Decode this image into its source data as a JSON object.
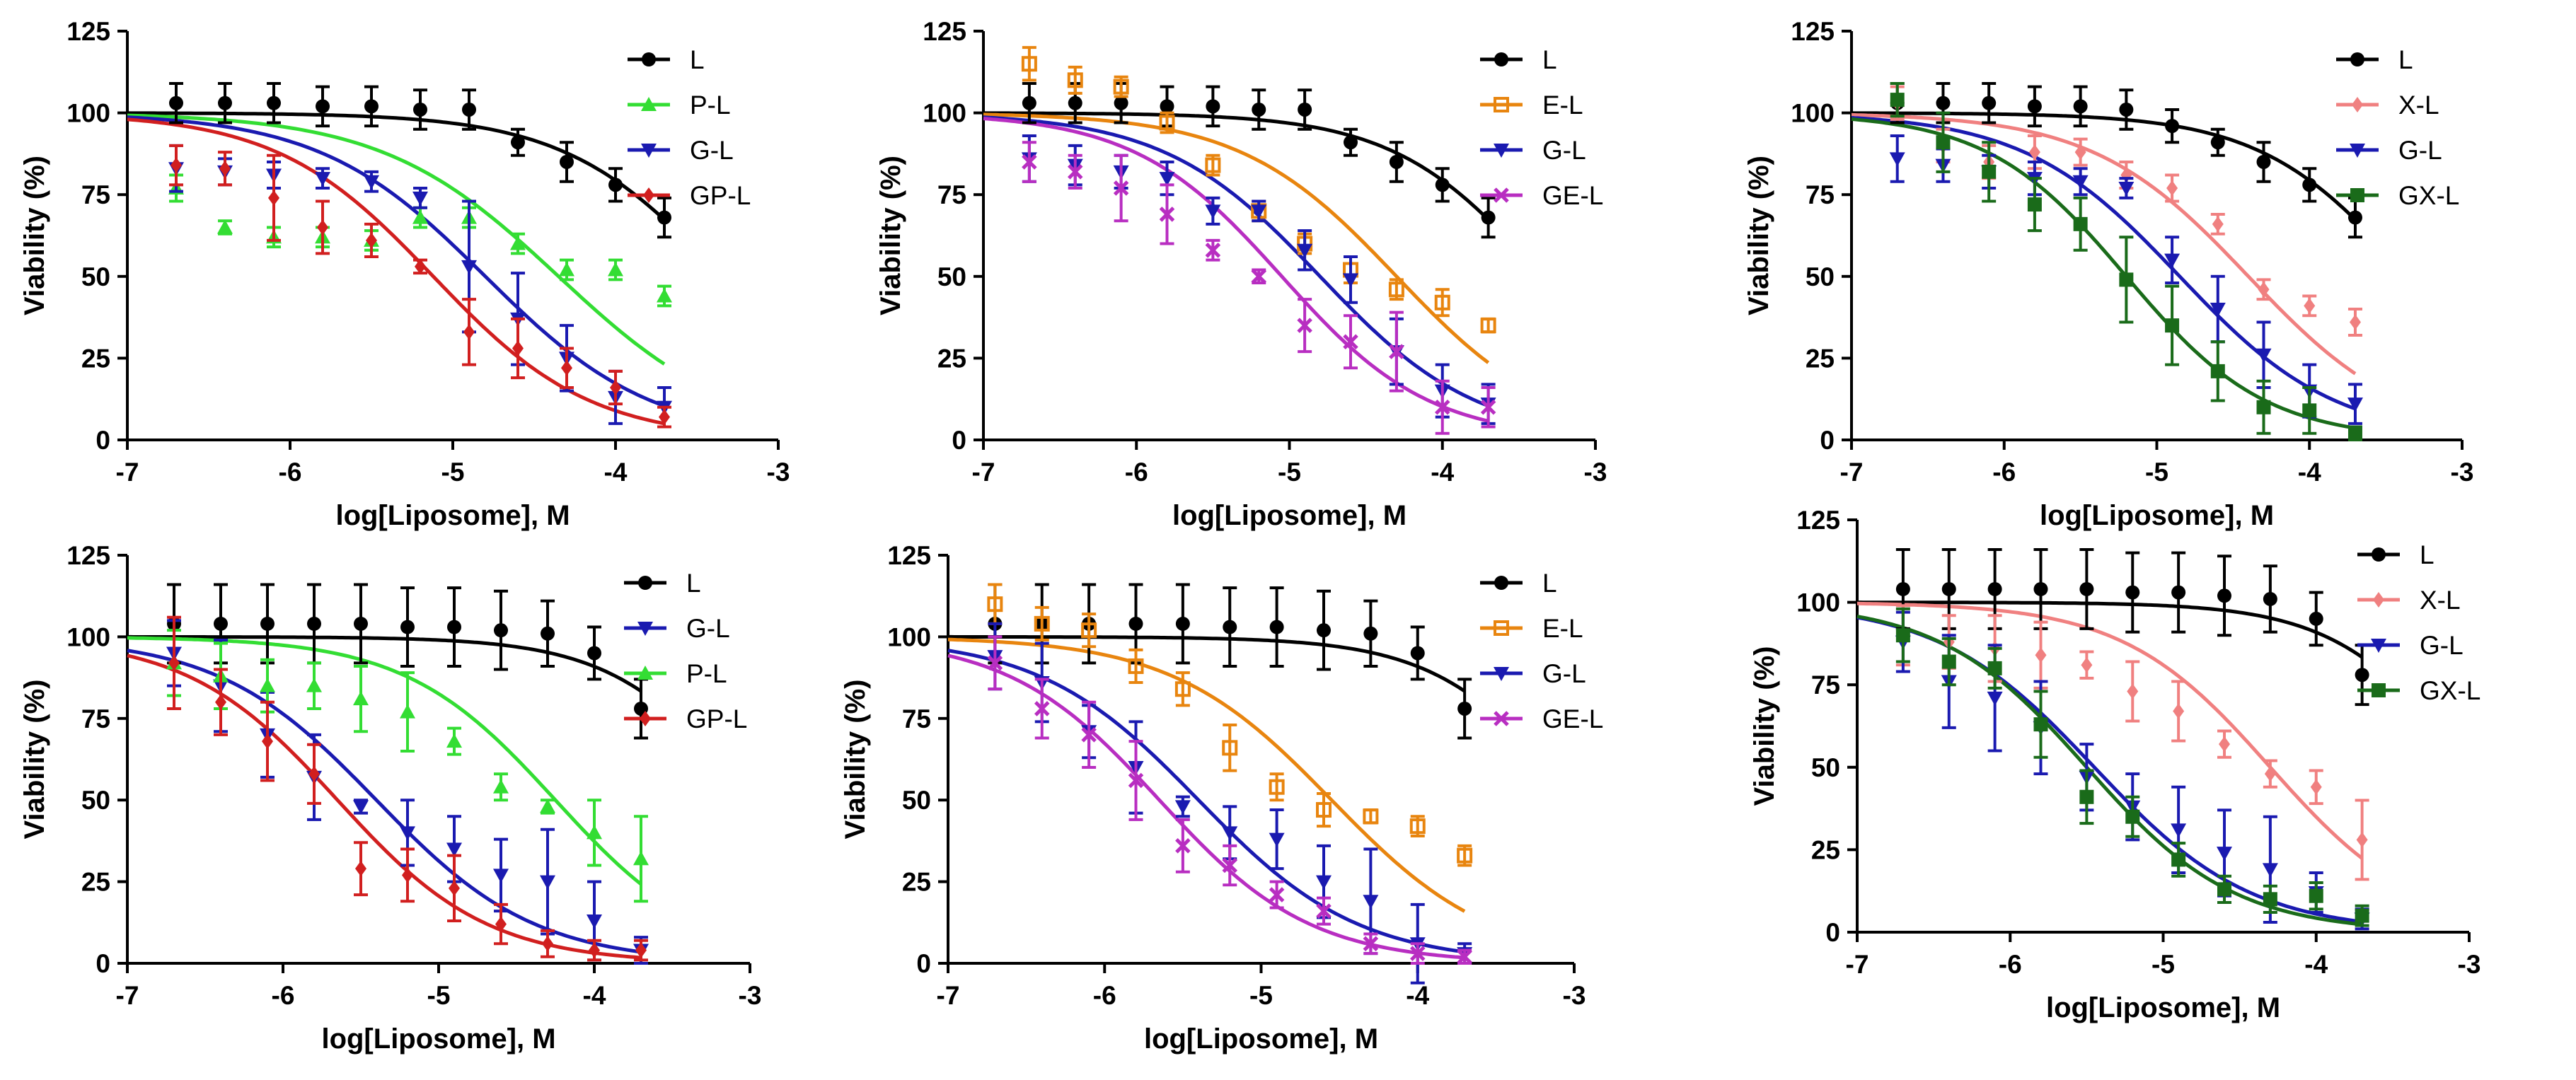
{
  "figure": {
    "series_styles": {
      "L": {
        "color": "#000000",
        "marker": "circle"
      },
      "P-L": {
        "color": "#33dd33",
        "marker": "triangle-up"
      },
      "G-L": {
        "color": "#1a1ab0",
        "marker": "triangle-down"
      },
      "GP-L": {
        "color": "#d11f1f",
        "marker": "diamond"
      },
      "E-L": {
        "color": "#e8850f",
        "marker": "square-open"
      },
      "GE-L": {
        "color": "#b82ec1",
        "marker": "x"
      },
      "X-L": {
        "color": "#f08080",
        "marker": "diamond"
      },
      "GX-L": {
        "color": "#1a6b1a",
        "marker": "square"
      }
    }
  },
  "chart_data": [
    {
      "type": "scatter",
      "panel": "top-left",
      "title": "",
      "xlabel": "log[Liposome], M",
      "ylabel": "Viability (%)",
      "xlim": [
        -7,
        -3
      ],
      "ylim": [
        0,
        125
      ],
      "xticks": [
        "-7",
        "-6",
        "-5",
        "-4",
        "-3"
      ],
      "yticks": [
        "0",
        "25",
        "50",
        "75",
        "100",
        "125"
      ],
      "legend": [
        "L",
        "P-L",
        "G-L",
        "GP-L"
      ],
      "legend_position": "right",
      "x": [
        -6.7,
        -6.4,
        -6.1,
        -5.8,
        -5.5,
        -5.2,
        -4.9,
        -4.6,
        -4.3,
        -4.0,
        -3.7
      ],
      "series": [
        {
          "name": "L",
          "values": [
            103,
            103,
            103,
            102,
            102,
            101,
            101,
            91,
            85,
            78,
            68
          ],
          "errors": [
            6,
            6,
            6,
            6,
            6,
            6,
            6,
            4,
            6,
            5,
            6
          ],
          "fit": {
            "top": 100,
            "bottom": 0,
            "log_ic50": -3.35,
            "hill": 0.9
          }
        },
        {
          "name": "P-L",
          "values": [
            77,
            65,
            62,
            62,
            61,
            68,
            68,
            60,
            52,
            52,
            44
          ],
          "errors": [
            4,
            2,
            3,
            3,
            3,
            3,
            3,
            3,
            3,
            3,
            3
          ],
          "fit": {
            "top": 100,
            "bottom": 0,
            "log_ic50": -4.35,
            "hill": 0.8
          }
        },
        {
          "name": "G-L",
          "values": [
            83,
            82,
            81,
            80,
            79,
            74,
            53,
            37,
            25,
            13,
            10
          ],
          "errors": [
            7,
            4,
            4,
            3,
            3,
            3,
            20,
            14,
            10,
            8,
            6
          ],
          "fit": {
            "top": 100,
            "bottom": 0,
            "log_ic50": -4.8,
            "hill": 0.85
          }
        },
        {
          "name": "GP-L",
          "values": [
            84,
            83,
            74,
            65,
            61,
            53,
            33,
            28,
            22,
            16,
            7
          ],
          "errors": [
            6,
            5,
            13,
            8,
            5,
            2,
            10,
            9,
            6,
            5,
            3
          ],
          "fit": {
            "top": 100,
            "bottom": 0,
            "log_ic50": -5.12,
            "hill": 0.9
          }
        }
      ]
    },
    {
      "type": "scatter",
      "panel": "top-middle",
      "title": "",
      "xlabel": "log[Liposome], M",
      "ylabel": "Viability (%)",
      "xlim": [
        -7,
        -3
      ],
      "ylim": [
        0,
        125
      ],
      "xticks": [
        "-7",
        "-6",
        "-5",
        "-4",
        "-3"
      ],
      "yticks": [
        "0",
        "25",
        "50",
        "75",
        "100",
        "125"
      ],
      "legend": [
        "L",
        "E-L",
        "G-L",
        "GE-L"
      ],
      "legend_position": "right",
      "x": [
        -6.7,
        -6.4,
        -6.1,
        -5.8,
        -5.5,
        -5.2,
        -4.9,
        -4.6,
        -4.3,
        -4.0,
        -3.7
      ],
      "series": [
        {
          "name": "L",
          "values": [
            103,
            103,
            103,
            102,
            102,
            101,
            101,
            91,
            85,
            78,
            68
          ],
          "errors": [
            6,
            6,
            6,
            6,
            6,
            6,
            6,
            4,
            6,
            5,
            6
          ],
          "fit": {
            "top": 100,
            "bottom": 0,
            "log_ic50": -3.35,
            "hill": 0.9
          }
        },
        {
          "name": "E-L",
          "values": [
            115,
            110,
            108,
            97,
            84,
            70,
            60,
            52,
            46,
            42,
            35
          ],
          "errors": [
            5,
            4,
            3,
            3,
            3,
            3,
            3,
            4,
            3,
            4,
            2
          ],
          "fit": {
            "top": 100,
            "bottom": 0,
            "log_ic50": -4.3,
            "hill": 0.85
          }
        },
        {
          "name": "G-L",
          "values": [
            86,
            84,
            82,
            80,
            70,
            70,
            58,
            49,
            27,
            15,
            11
          ],
          "errors": [
            7,
            6,
            5,
            5,
            4,
            3,
            6,
            7,
            10,
            8,
            6
          ],
          "fit": {
            "top": 100,
            "bottom": 0,
            "log_ic50": -4.8,
            "hill": 0.85
          }
        },
        {
          "name": "GE-L",
          "values": [
            85,
            82,
            77,
            69,
            58,
            50,
            35,
            30,
            27,
            10,
            10
          ],
          "errors": [
            6,
            5,
            10,
            9,
            3,
            2,
            8,
            8,
            12,
            8,
            6
          ],
          "fit": {
            "top": 100,
            "bottom": 0,
            "log_ic50": -5.05,
            "hill": 0.9
          }
        }
      ]
    },
    {
      "type": "scatter",
      "panel": "top-right",
      "title": "",
      "xlabel": "log[Liposome], M",
      "ylabel": "Viability (%)",
      "xlim": [
        -7,
        -3
      ],
      "ylim": [
        0,
        125
      ],
      "xticks": [
        "-7",
        "-6",
        "-5",
        "-4",
        "-3"
      ],
      "yticks": [
        "0",
        "25",
        "50",
        "75",
        "100",
        "125"
      ],
      "legend": [
        "L",
        "X-L",
        "G-L",
        "GX-L"
      ],
      "legend_position": "right",
      "x": [
        -6.7,
        -6.4,
        -6.1,
        -5.8,
        -5.5,
        -5.2,
        -4.9,
        -4.6,
        -4.3,
        -4.0,
        -3.7
      ],
      "series": [
        {
          "name": "L",
          "values": [
            103,
            103,
            103,
            102,
            102,
            101,
            96,
            91,
            85,
            78,
            68
          ],
          "errors": [
            6,
            6,
            6,
            6,
            6,
            6,
            5,
            4,
            6,
            5,
            6
          ],
          "fit": {
            "top": 100,
            "bottom": 0,
            "log_ic50": -3.35,
            "hill": 0.9
          }
        },
        {
          "name": "X-L",
          "values": [
            103,
            90,
            85,
            88,
            88,
            81,
            77,
            66,
            46,
            41,
            36
          ],
          "errors": [
            5,
            5,
            5,
            5,
            4,
            4,
            4,
            3,
            3,
            3,
            4
          ],
          "fit": {
            "top": 100,
            "bottom": 0,
            "log_ic50": -4.4,
            "hill": 0.85
          }
        },
        {
          "name": "G-L",
          "values": [
            86,
            84,
            82,
            80,
            79,
            77,
            55,
            40,
            26,
            15,
            11
          ],
          "errors": [
            7,
            5,
            5,
            5,
            4,
            3,
            7,
            10,
            10,
            8,
            6
          ],
          "fit": {
            "top": 100,
            "bottom": 0,
            "log_ic50": -4.85,
            "hill": 0.85
          }
        },
        {
          "name": "GX-L",
          "values": [
            104,
            91,
            82,
            72,
            66,
            49,
            35,
            21,
            10,
            9,
            2
          ],
          "errors": [
            5,
            9,
            9,
            8,
            8,
            13,
            12,
            9,
            8,
            7,
            2
          ],
          "fit": {
            "top": 100,
            "bottom": 0,
            "log_ic50": -5.2,
            "hill": 0.95
          }
        }
      ]
    },
    {
      "type": "scatter",
      "panel": "bottom-left",
      "title": "",
      "xlabel": "log[Liposome], M",
      "ylabel": "Viability (%)",
      "xlim": [
        -7,
        -3
      ],
      "ylim": [
        0,
        125
      ],
      "xticks": [
        "-7",
        "-6",
        "-5",
        "-4",
        "-3"
      ],
      "yticks": [
        "0",
        "25",
        "50",
        "75",
        "100",
        "125"
      ],
      "legend": [
        "L",
        "G-L",
        "P-L",
        "GP-L"
      ],
      "legend_position": "right",
      "x": [
        -6.7,
        -6.4,
        -6.1,
        -5.8,
        -5.5,
        -5.2,
        -4.9,
        -4.6,
        -4.3,
        -4.0,
        -3.7
      ],
      "series": [
        {
          "name": "L",
          "values": [
            104,
            104,
            104,
            104,
            104,
            103,
            103,
            102,
            101,
            95,
            78
          ],
          "errors": [
            12,
            12,
            12,
            12,
            12,
            12,
            12,
            12,
            10,
            8,
            9
          ],
          "fit": {
            "top": 100,
            "bottom": 0,
            "log_ic50": -3.0,
            "hill": 1.0
          }
        },
        {
          "name": "G-L",
          "values": [
            95,
            85,
            70,
            57,
            48,
            40,
            35,
            27,
            25,
            13,
            4
          ],
          "errors": [
            10,
            14,
            13,
            13,
            2,
            10,
            10,
            11,
            16,
            12,
            4
          ],
          "fit": {
            "top": 100,
            "bottom": 0,
            "log_ic50": -5.4,
            "hill": 0.85
          }
        },
        {
          "name": "P-L",
          "values": [
            92,
            88,
            85,
            85,
            81,
            77,
            68,
            54,
            48,
            40,
            32
          ],
          "errors": [
            10,
            10,
            8,
            7,
            10,
            12,
            4,
            4,
            2,
            10,
            13
          ],
          "fit": {
            "top": 100,
            "bottom": 0,
            "log_ic50": -4.25,
            "hill": 0.9
          }
        },
        {
          "name": "GP-L",
          "values": [
            92,
            80,
            68,
            58,
            29,
            27,
            23,
            12,
            6,
            4,
            4
          ],
          "errors": [
            14,
            10,
            12,
            9,
            8,
            8,
            10,
            6,
            4,
            3,
            3
          ],
          "fit": {
            "top": 100,
            "bottom": 0,
            "log_ic50": -5.65,
            "hill": 0.9
          }
        }
      ]
    },
    {
      "type": "scatter",
      "panel": "bottom-middle",
      "title": "",
      "xlabel": "log[Liposome], M",
      "ylabel": "Viability (%)",
      "xlim": [
        -7,
        -3
      ],
      "ylim": [
        0,
        125
      ],
      "xticks": [
        "-7",
        "-6",
        "-5",
        "-4",
        "-3"
      ],
      "yticks": [
        "0",
        "25",
        "50",
        "75",
        "100",
        "125"
      ],
      "legend": [
        "L",
        "E-L",
        "G-L",
        "GE-L"
      ],
      "legend_position": "right",
      "x": [
        -6.7,
        -6.4,
        -6.1,
        -5.8,
        -5.5,
        -5.2,
        -4.9,
        -4.6,
        -4.3,
        -4.0,
        -3.7
      ],
      "series": [
        {
          "name": "L",
          "values": [
            104,
            104,
            104,
            104,
            104,
            103,
            103,
            102,
            101,
            95,
            78
          ],
          "errors": [
            12,
            12,
            12,
            12,
            12,
            12,
            12,
            12,
            10,
            8,
            9
          ],
          "fit": {
            "top": 100,
            "bottom": 0,
            "log_ic50": -3.0,
            "hill": 1.0
          }
        },
        {
          "name": "E-L",
          "values": [
            110,
            104,
            102,
            91,
            84,
            66,
            54,
            47,
            45,
            42,
            33
          ],
          "errors": [
            6,
            5,
            5,
            5,
            5,
            7,
            4,
            5,
            2,
            3,
            3
          ],
          "fit": {
            "top": 100,
            "bottom": 0,
            "log_ic50": -4.55,
            "hill": 0.85
          }
        },
        {
          "name": "G-L",
          "values": [
            94,
            86,
            71,
            60,
            48,
            40,
            38,
            25,
            19,
            6,
            3
          ],
          "errors": [
            10,
            12,
            8,
            14,
            3,
            8,
            9,
            11,
            16,
            12,
            3
          ],
          "fit": {
            "top": 100,
            "bottom": 0,
            "log_ic50": -5.4,
            "hill": 0.85
          }
        },
        {
          "name": "GE-L",
          "values": [
            92,
            78,
            70,
            56,
            36,
            30,
            21,
            16,
            6,
            3,
            2
          ],
          "errors": [
            8,
            9,
            10,
            12,
            8,
            6,
            4,
            4,
            3,
            3,
            2
          ],
          "fit": {
            "top": 100,
            "bottom": 0,
            "log_ic50": -5.65,
            "hill": 0.9
          }
        }
      ]
    },
    {
      "type": "scatter",
      "panel": "bottom-right",
      "title": "",
      "xlabel": "log[Liposome], M",
      "ylabel": "Viability (%)",
      "xlim": [
        -7,
        -3
      ],
      "ylim": [
        0,
        125
      ],
      "xticks": [
        "-7",
        "-6",
        "-5",
        "-4",
        "-3"
      ],
      "yticks": [
        "0",
        "25",
        "50",
        "75",
        "100",
        "125"
      ],
      "legend": [
        "L",
        "X-L",
        "G-L",
        "GX-L"
      ],
      "legend_position": "right",
      "x": [
        -6.7,
        -6.4,
        -6.1,
        -5.8,
        -5.5,
        -5.2,
        -4.9,
        -4.6,
        -4.3,
        -4.0,
        -3.7
      ],
      "series": [
        {
          "name": "L",
          "values": [
            104,
            104,
            104,
            104,
            104,
            103,
            103,
            102,
            101,
            95,
            78
          ],
          "errors": [
            12,
            12,
            12,
            12,
            12,
            12,
            12,
            12,
            10,
            8,
            9
          ],
          "fit": {
            "top": 100,
            "bottom": 0,
            "log_ic50": -3.0,
            "hill": 1.0
          }
        },
        {
          "name": "X-L",
          "values": [
            90,
            88,
            86,
            84,
            81,
            73,
            67,
            57,
            48,
            44,
            28
          ],
          "errors": [
            9,
            8,
            10,
            10,
            4,
            9,
            9,
            4,
            4,
            5,
            12
          ],
          "fit": {
            "top": 100,
            "bottom": 0,
            "log_ic50": -4.3,
            "hill": 0.9
          }
        },
        {
          "name": "G-L",
          "values": [
            88,
            76,
            71,
            62,
            47,
            38,
            31,
            24,
            19,
            12,
            4
          ],
          "errors": [
            9,
            14,
            16,
            14,
            10,
            10,
            13,
            13,
            16,
            6,
            3
          ],
          "fit": {
            "top": 100,
            "bottom": 0,
            "log_ic50": -5.45,
            "hill": 0.85
          }
        },
        {
          "name": "GX-L",
          "values": [
            90,
            82,
            80,
            63,
            41,
            35,
            22,
            13,
            10,
            11,
            5
          ],
          "errors": [
            8,
            7,
            6,
            10,
            8,
            6,
            5,
            4,
            4,
            4,
            3
          ],
          "fit": {
            "top": 100,
            "bottom": 0,
            "log_ic50": -5.5,
            "hill": 0.9
          }
        }
      ]
    }
  ]
}
